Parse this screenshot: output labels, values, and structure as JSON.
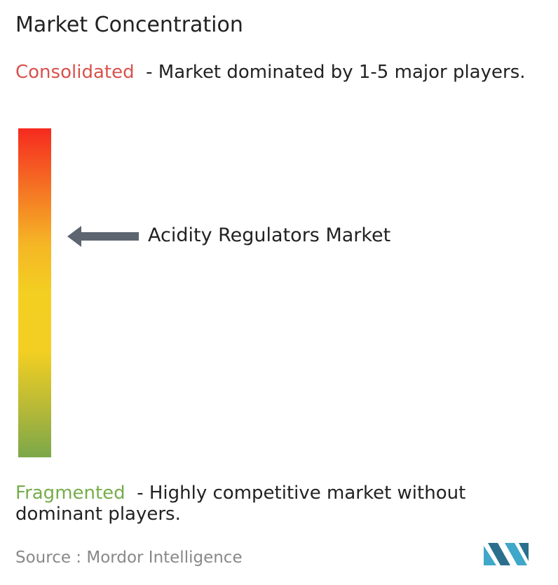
{
  "title": "Market Concentration",
  "consolidated": {
    "label": "Consolidated",
    "description": "- Market dominated by 1-5 major players."
  },
  "market": {
    "label": "Acidity Regulators Market"
  },
  "fragmented": {
    "label": "Fragmented",
    "description": "- Highly competitive market without dominant players."
  },
  "source": {
    "label": "Source :",
    "name": "Mordor Intelligence"
  }
}
